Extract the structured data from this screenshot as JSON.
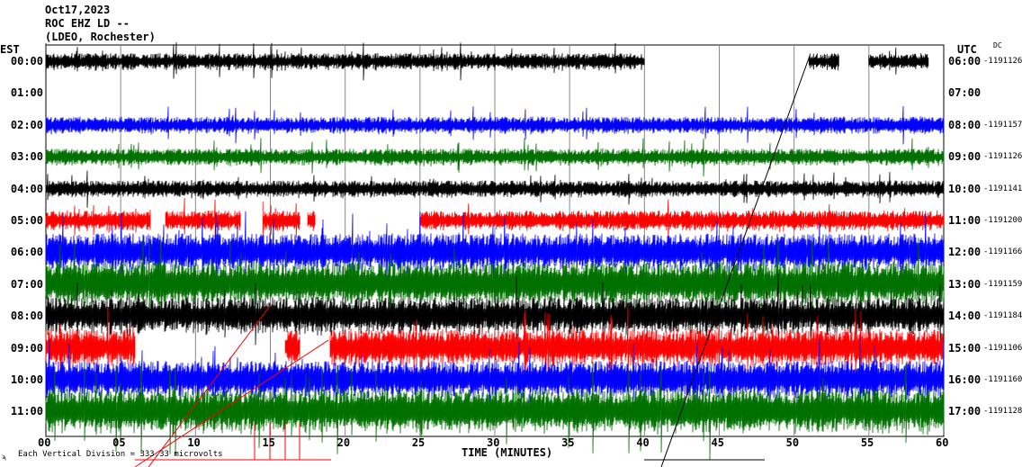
{
  "header": {
    "date": "Oct17,2023",
    "station": "ROC EHZ LD --",
    "network": "(LDEO, Rochester)"
  },
  "left_timezone": "EST",
  "right_timezone": "UTC",
  "dc_label": "DC",
  "footer": {
    "scale_text": "Each Vertical Division = 333.33 microvolts",
    "corner_mark": "ϡ"
  },
  "chart_data": {
    "type": "line",
    "title": "Oct17,2023 ROC EHZ LD -- (LDEO, Rochester)",
    "xlabel": "TIME (MINUTES)",
    "xlim": [
      0,
      60
    ],
    "x_ticks": [
      "00",
      "05",
      "10",
      "15",
      "20",
      "25",
      "30",
      "35",
      "40",
      "45",
      "50",
      "55",
      "60"
    ],
    "grid": "vertical every 5 minutes",
    "rows": [
      {
        "est": "00:00",
        "utc": "06:00",
        "dc": "-1191126",
        "color": "#000000",
        "amplitude": 10,
        "segments": [
          [
            0,
            40
          ],
          [
            51,
            53
          ],
          [
            55,
            59
          ]
        ]
      },
      {
        "est": "01:00",
        "utc": "07:00",
        "dc": "",
        "color": "#ff0000",
        "amplitude": 0,
        "segments": []
      },
      {
        "est": "02:00",
        "utc": "08:00",
        "dc": "-1191157",
        "color": "#0000ff",
        "amplitude": 10,
        "segments": [
          [
            0,
            60
          ]
        ]
      },
      {
        "est": "03:00",
        "utc": "09:00",
        "dc": "-1191126",
        "color": "#007000",
        "amplitude": 10,
        "segments": [
          [
            0,
            60
          ]
        ]
      },
      {
        "est": "04:00",
        "utc": "10:00",
        "dc": "-1191141",
        "color": "#000000",
        "amplitude": 10,
        "segments": [
          [
            0,
            60
          ]
        ]
      },
      {
        "est": "05:00",
        "utc": "11:00",
        "dc": "-1191200",
        "color": "#ff0000",
        "amplitude": 12,
        "segments": [
          [
            0,
            7
          ],
          [
            8,
            13
          ],
          [
            14.5,
            17
          ],
          [
            17.5,
            18
          ],
          [
            25,
            60
          ]
        ]
      },
      {
        "est": "06:00",
        "utc": "12:00",
        "dc": "-1191166",
        "color": "#0000ff",
        "amplitude": 22,
        "segments": [
          [
            0,
            60
          ]
        ]
      },
      {
        "est": "07:00",
        "utc": "13:00",
        "dc": "-1191159",
        "color": "#007000",
        "amplitude": 26,
        "segments": [
          [
            0,
            60
          ]
        ]
      },
      {
        "est": "08:00",
        "utc": "14:00",
        "dc": "-1191184",
        "color": "#000000",
        "amplitude": 22,
        "segments": [
          [
            0,
            60
          ]
        ]
      },
      {
        "est": "09:00",
        "utc": "15:00",
        "dc": "-1191106",
        "color": "#ff0000",
        "amplitude": 22,
        "segments": [
          [
            0,
            6
          ],
          [
            16,
            17
          ],
          [
            19,
            60
          ]
        ]
      },
      {
        "est": "10:00",
        "utc": "16:00",
        "dc": "-1191160",
        "color": "#0000ff",
        "amplitude": 22,
        "segments": [
          [
            0,
            60
          ]
        ]
      },
      {
        "est": "11:00",
        "utc": "17:00",
        "dc": "-1191128",
        "color": "#007000",
        "amplitude": 26,
        "segments": [
          [
            0,
            60
          ]
        ]
      }
    ]
  }
}
